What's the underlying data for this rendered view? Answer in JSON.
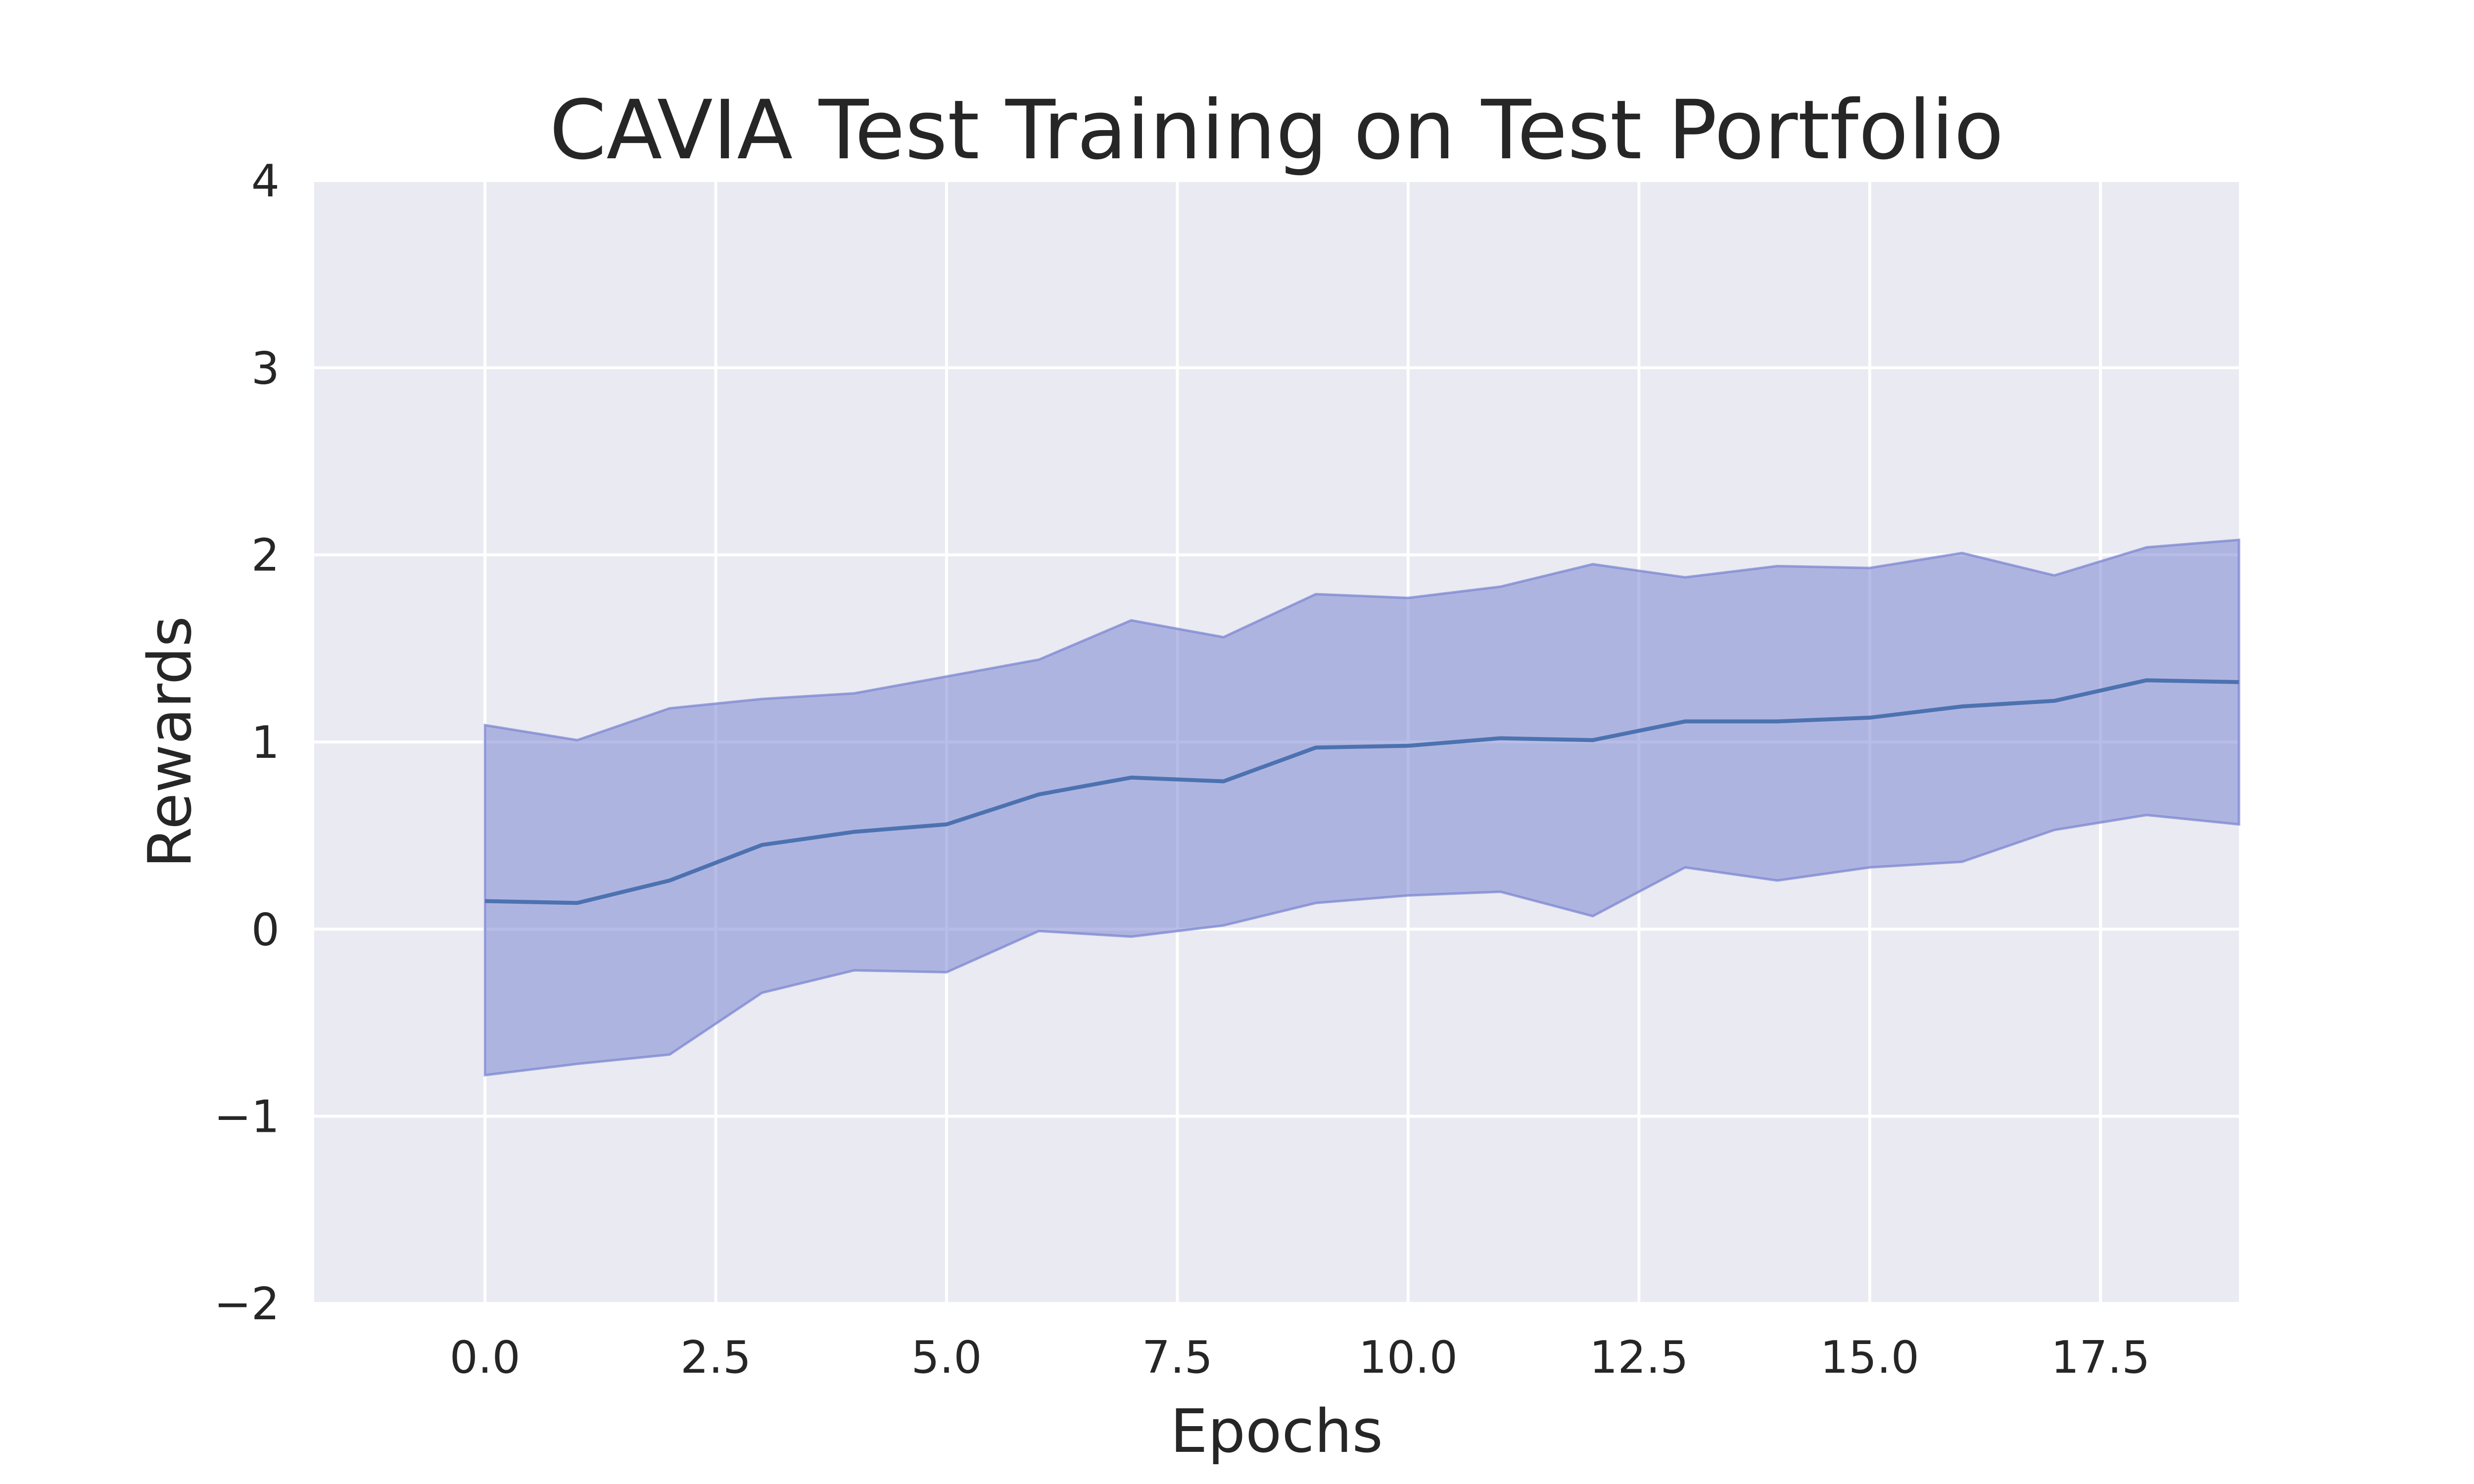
{
  "chart_data": {
    "type": "line",
    "title": "CAVIA Test Training on Test Portfolio",
    "xlabel": "Epochs",
    "ylabel": "Rewards",
    "xlim": [
      -1.85,
      19.0
    ],
    "ylim": [
      -2,
      4
    ],
    "x_ticks": [
      0.0,
      2.5,
      5.0,
      7.5,
      10.0,
      12.5,
      15.0,
      17.5
    ],
    "x_tick_labels": [
      "0.0",
      "2.5",
      "5.0",
      "7.5",
      "10.0",
      "12.5",
      "15.0",
      "17.5"
    ],
    "y_ticks": [
      -2,
      -1,
      0,
      1,
      2,
      3,
      4
    ],
    "y_tick_labels": [
      "−2",
      "−1",
      "0",
      "1",
      "2",
      "3",
      "4"
    ],
    "grid": true,
    "x": [
      0,
      1,
      2,
      3,
      4,
      5,
      6,
      7,
      8,
      9,
      10,
      11,
      12,
      13,
      14,
      15,
      16,
      17,
      18,
      19
    ],
    "series": [
      {
        "values": [
          0.15,
          0.14,
          0.26,
          0.45,
          0.52,
          0.56,
          0.72,
          0.81,
          0.79,
          0.97,
          0.98,
          1.02,
          1.01,
          1.11,
          1.11,
          1.13,
          1.19,
          1.22,
          1.33,
          1.32
        ],
        "upper": [
          1.09,
          1.01,
          1.18,
          1.23,
          1.26,
          1.35,
          1.44,
          1.65,
          1.56,
          1.79,
          1.77,
          1.83,
          1.95,
          1.88,
          1.94,
          1.93,
          2.01,
          1.89,
          2.04,
          2.08
        ],
        "lower": [
          -0.78,
          -0.72,
          -0.67,
          -0.34,
          -0.22,
          -0.23,
          -0.01,
          -0.04,
          0.02,
          0.14,
          0.18,
          0.2,
          0.07,
          0.33,
          0.26,
          0.33,
          0.36,
          0.53,
          0.61,
          0.56
        ],
        "line_color": "#4c72b0",
        "band_color": "#7b87d2"
      }
    ]
  }
}
